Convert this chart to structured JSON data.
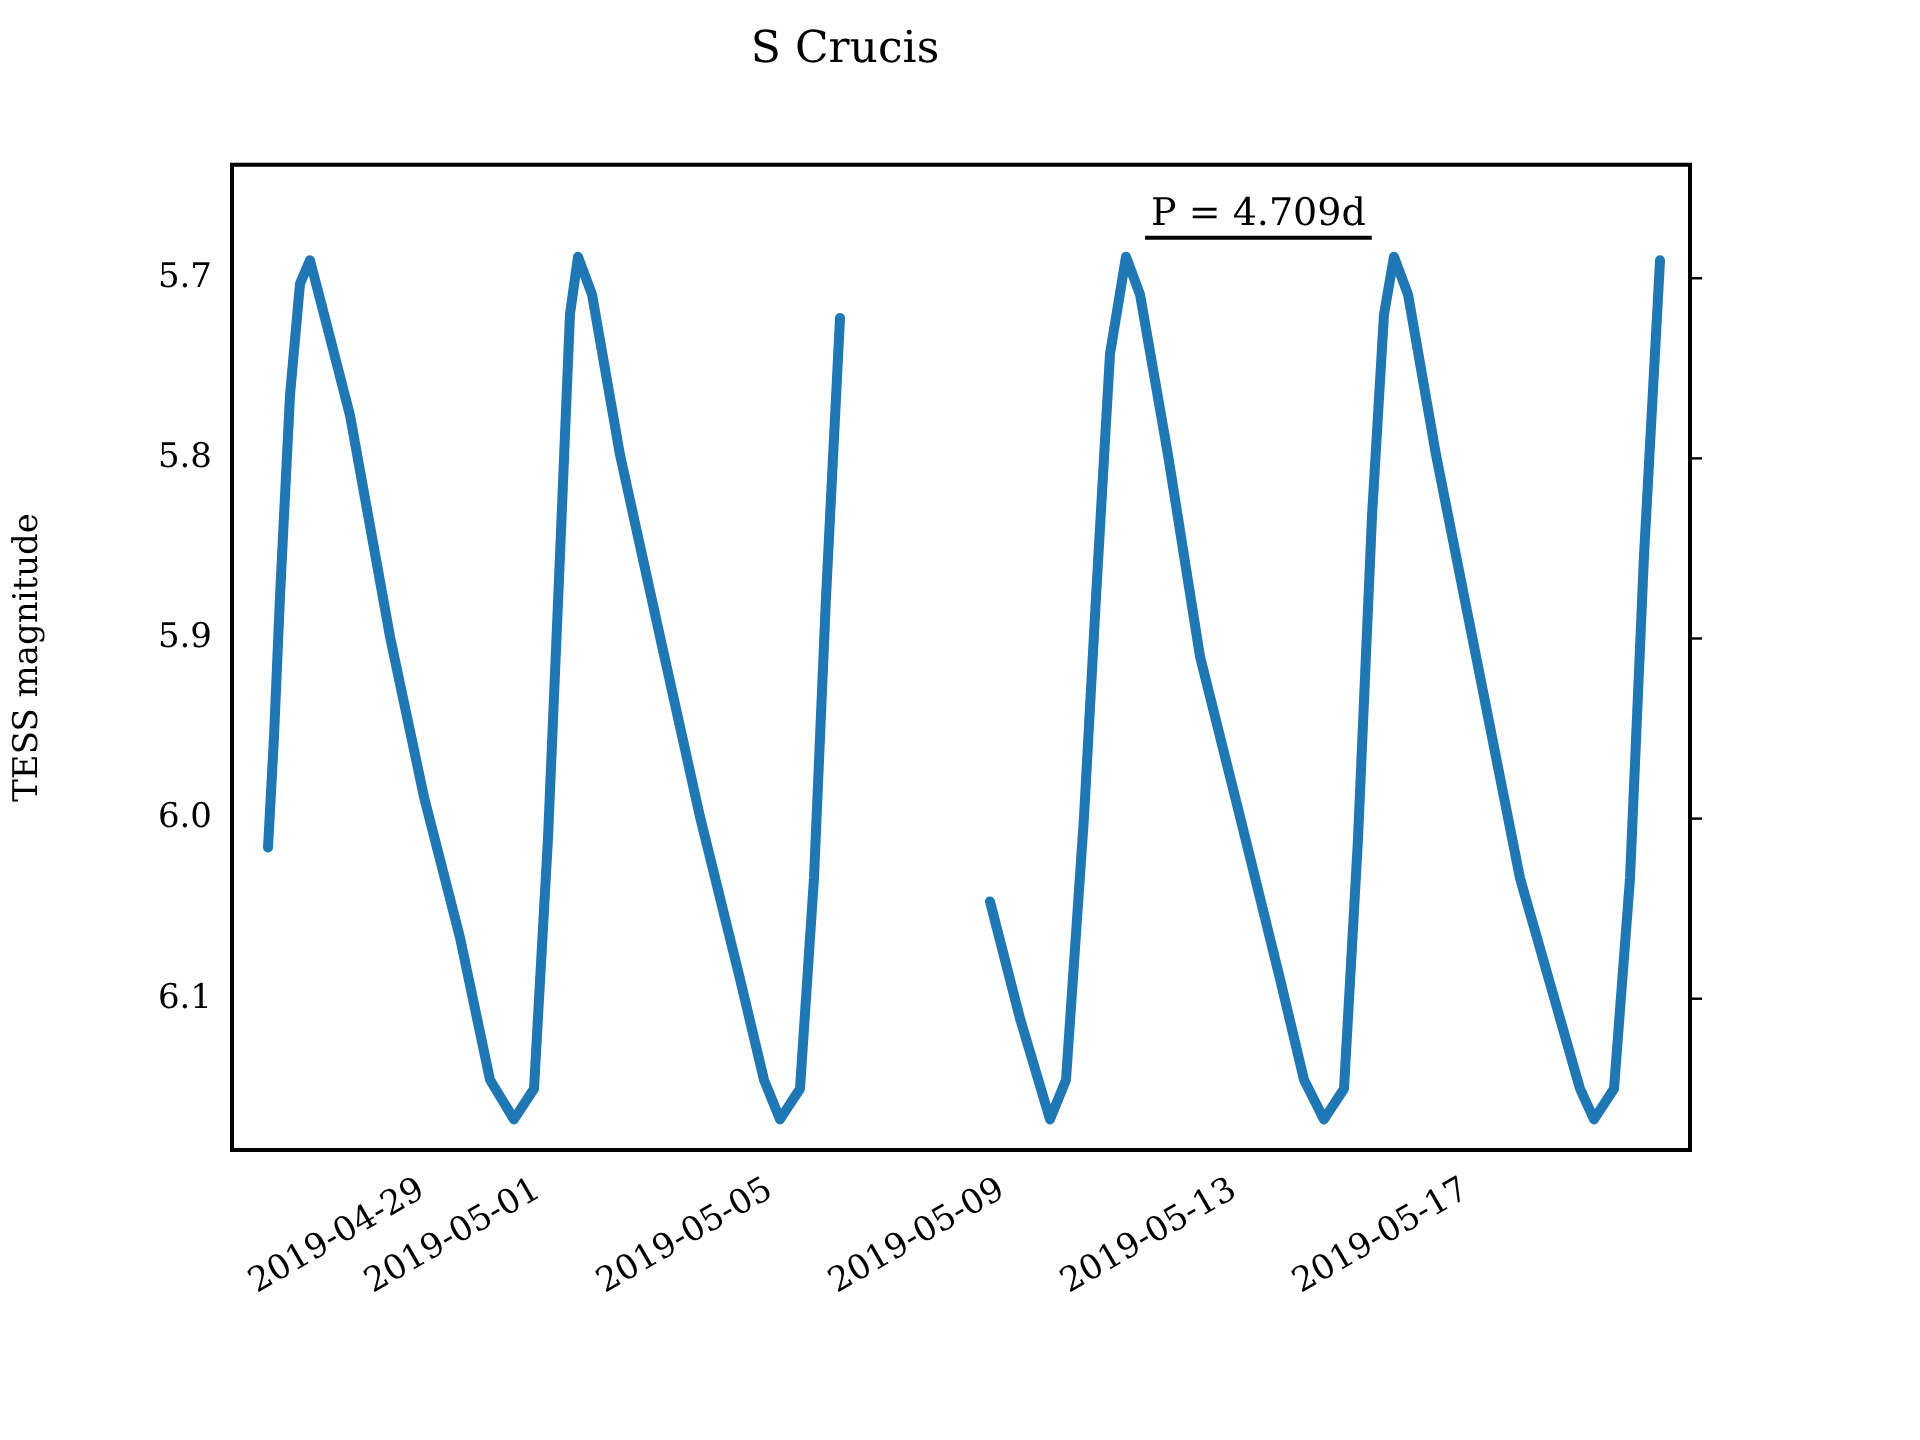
{
  "chart_data": {
    "type": "line",
    "title": "S Crucis",
    "ylabel": "TESS magnitude",
    "x": [
      "2019-04-26T08:17",
      "2019-04-26T10:45",
      "2019-04-26T13:14",
      "2019-04-26T17:23",
      "2019-04-26T21:31",
      "2019-04-27T01:39",
      "2019-04-27T07:27",
      "2019-04-27T18:12",
      "2019-04-28T10:46",
      "2019-04-29T00:50",
      "2019-04-29T15:43",
      "2019-04-30T04:08",
      "2019-04-30T14:04",
      "2019-04-30T22:21",
      "2019-05-01T04:08",
      "2019-05-01T09:06",
      "2019-05-01T13:14",
      "2019-05-01T16:33",
      "2019-05-01T22:21",
      "2019-05-02T09:56",
      "2019-05-03T02:29",
      "2019-05-03T19:02",
      "2019-05-04T11:35",
      "2019-05-04T21:31",
      "2019-05-05T04:08",
      "2019-05-05T12:25",
      "2019-05-05T18:12",
      "2019-05-05T23:11",
      "2019-05-06T04:58",
      "2019-05-07T12:00",
      "2019-05-08T19:02",
      "2019-05-09T07:27",
      "2019-05-09T19:52",
      "2019-05-10T02:29",
      "2019-05-10T09:56",
      "2019-05-10T14:54",
      "2019-05-10T20:41",
      "2019-05-11T03:19",
      "2019-05-11T09:06",
      "2019-05-11T20:41",
      "2019-05-12T09:56",
      "2019-05-13T02:29",
      "2019-05-13T19:02",
      "2019-05-14T04:58",
      "2019-05-14T13:14",
      "2019-05-14T21:31",
      "2019-05-15T03:19",
      "2019-05-15T09:06",
      "2019-05-15T14:04",
      "2019-05-15T18:12",
      "2019-05-16T00:00",
      "2019-05-16T11:35",
      "2019-05-17T05:47",
      "2019-05-17T22:20",
      "2019-05-18T14:54",
      "2019-05-18T23:11",
      "2019-05-19T04:58",
      "2019-05-19T13:14",
      "2019-05-19T19:52",
      "2019-05-20T01:39",
      "2019-05-20T08:17"
    ],
    "series": [
      {
        "color": "#1f77b4",
        "values": [
          6.016,
          5.955,
          5.877,
          5.765,
          5.703,
          5.69,
          5.72,
          5.776,
          5.899,
          5.988,
          6.066,
          6.145,
          6.167,
          6.15,
          6.011,
          5.854,
          5.72,
          5.688,
          5.709,
          5.798,
          5.899,
          5.999,
          6.089,
          6.145,
          6.167,
          6.15,
          6.033,
          5.877,
          5.722,
          null,
          6.046,
          6.111,
          6.167,
          6.145,
          5.999,
          5.877,
          5.742,
          5.688,
          5.709,
          5.798,
          5.91,
          5.999,
          6.089,
          6.145,
          6.167,
          6.15,
          6.011,
          5.832,
          5.72,
          5.688,
          5.709,
          5.798,
          5.921,
          6.033,
          6.111,
          6.15,
          6.167,
          6.15,
          6.033,
          5.854,
          5.69
        ]
      }
    ],
    "xlim": [
      "2019-04-25T17:23",
      "2019-05-20T20:41"
    ],
    "xticks": [
      "2019-04-29",
      "2019-05-01",
      "2019-05-05",
      "2019-05-09",
      "2019-05-13",
      "2019-05-17"
    ],
    "ylim": [
      6.184,
      5.637
    ],
    "yticks": [
      5.7,
      5.8,
      5.9,
      {
        "value": 6,
        "label": "6.0"
      },
      6.1
    ],
    "annotations": [
      "P = 4.709d"
    ],
    "grid": false,
    "legend": false,
    "marker": "none",
    "line_style": "solid"
  }
}
